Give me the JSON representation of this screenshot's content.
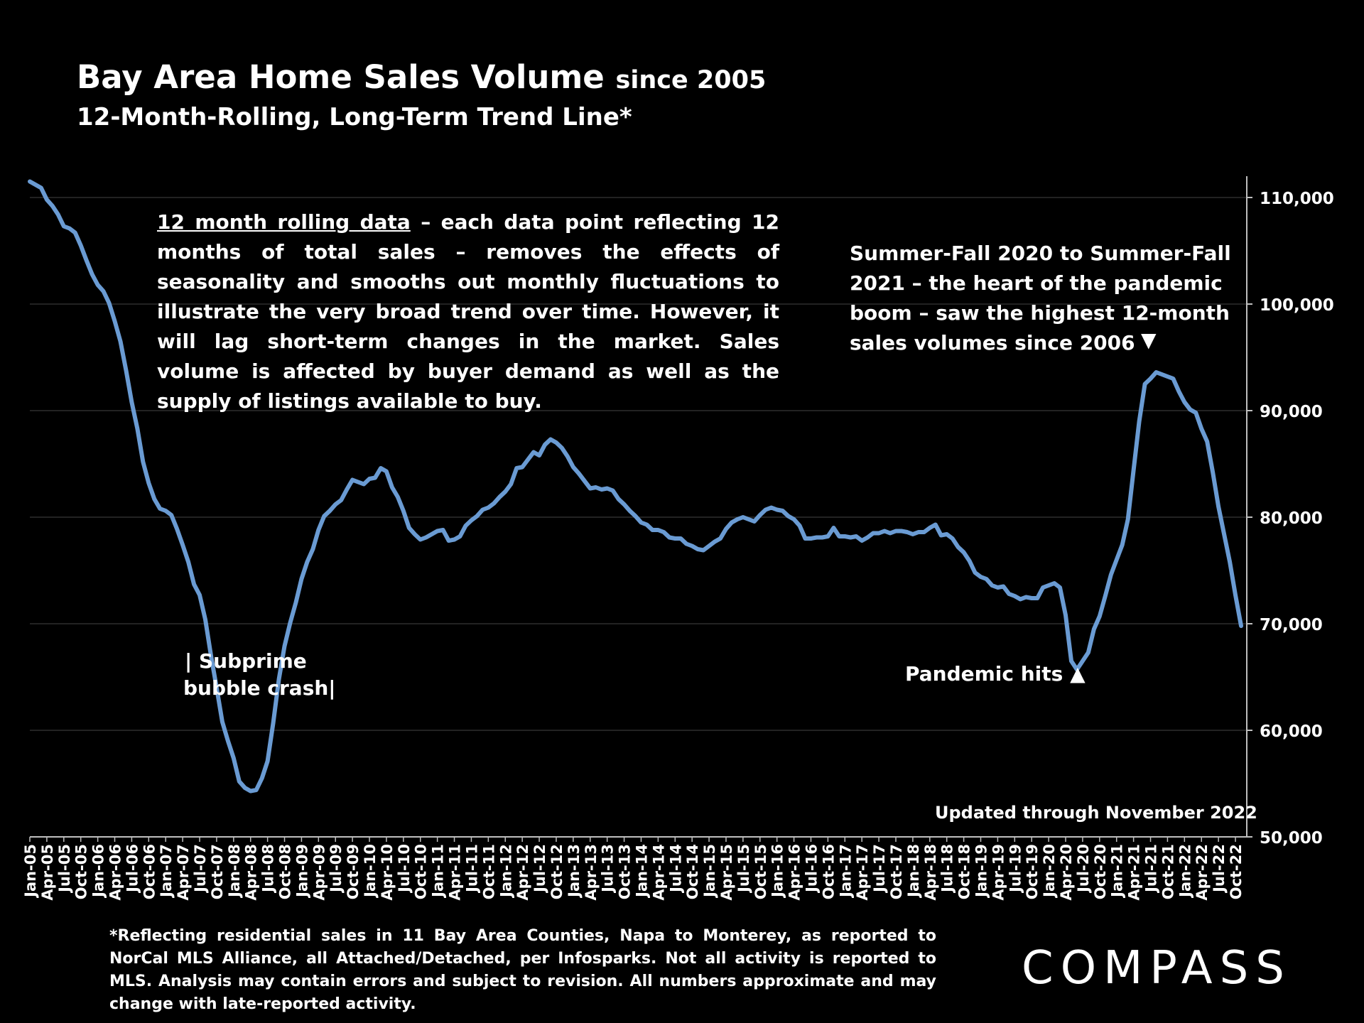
{
  "header": {
    "title_main": "Bay Area Home Sales Volume",
    "title_suffix": "since 2005",
    "subtitle": "12-Month-Rolling, Long-Term Trend Line*"
  },
  "notes": {
    "left_underlined": "12 month rolling data",
    "left_text": " – each data point reflecting 12 months of total sales – removes the effects of seasonality and smooths out monthly fluctuations to illustrate the very broad trend over time. However, it will lag short-term changes in the market. Sales volume is affected by buyer demand as well as the supply of listings available to buy.",
    "right_text": "Summer-Fall 2020 to Summer-Fall 2021 – the heart of the pandemic boom – saw the highest 12-month sales volumes since 2006",
    "right_marker": "▼"
  },
  "annotations": {
    "subprime_line1": "| Subprime",
    "subprime_line2": "bubble crash|",
    "pandemic": "Pandemic hits ▲",
    "updated": "Updated through November 2022"
  },
  "footnote": "*Reflecting residential sales in 11 Bay Area Counties, Napa to Monterey, as reported to NorCal MLS Alliance, all Attached/Detached, per Infosparks. Not all activity is reported to MLS. Analysis may contain errors and subject to revision. All numbers approximate and may change with late-reported activity.",
  "logo": "COMPASS",
  "colors": {
    "background": "#000000",
    "line": "#6a9bd3",
    "text": "#ffffff",
    "grid": "#2e2e2e"
  },
  "chart_data": {
    "type": "line",
    "title": "Bay Area Home Sales Volume since 2005",
    "subtitle": "12-Month-Rolling, Long-Term Trend Line*",
    "xlabel": "",
    "ylabel": "",
    "ylim": [
      50000,
      110000
    ],
    "yticks": [
      50000,
      60000,
      70000,
      80000,
      90000,
      100000,
      110000
    ],
    "ytick_labels": [
      "50,000",
      "60,000",
      "70,000",
      "80,000",
      "90,000",
      "100,000",
      "110,000"
    ],
    "y_axis_position": "right",
    "grid": true,
    "x_tick_labels": [
      "Jan-05",
      "Apr-05",
      "Jul-05",
      "Oct-05",
      "Jan-06",
      "Apr-06",
      "Jul-06",
      "Oct-06",
      "Jan-07",
      "Apr-07",
      "Jul-07",
      "Oct-07",
      "Jan-08",
      "Apr-08",
      "Jul-08",
      "Oct-08",
      "Jan-09",
      "Apr-09",
      "Jul-09",
      "Oct-09",
      "Jan-10",
      "Apr-10",
      "Jul-10",
      "Oct-10",
      "Jan-11",
      "Apr-11",
      "Jul-11",
      "Oct-11",
      "Jan-12",
      "Apr-12",
      "Jul-12",
      "Oct-12",
      "Jan-13",
      "Apr-13",
      "Jul-13",
      "Oct-13",
      "Jan-14",
      "Apr-14",
      "Jul-14",
      "Oct-14",
      "Jan-15",
      "Apr-15",
      "Jul-15",
      "Oct-15",
      "Jan-16",
      "Apr-16",
      "Jul-16",
      "Oct-16",
      "Jan-17",
      "Apr-17",
      "Jul-17",
      "Oct-17",
      "Jan-18",
      "Apr-18",
      "Jul-18",
      "Oct-18",
      "Jan-19",
      "Apr-19",
      "Jul-19",
      "Oct-19",
      "Jan-20",
      "Apr-20",
      "Jul-20",
      "Oct-20",
      "Jan-21",
      "Apr-21",
      "Jul-21",
      "Oct-21",
      "Jan-22",
      "Apr-22",
      "Jul-22",
      "Oct-22"
    ],
    "series": [
      {
        "x_start": "Jan-05",
        "frequency": "monthly",
        "values": [
          111500,
          111200,
          110900,
          109800,
          109200,
          108400,
          107300,
          107100,
          106700,
          105500,
          104100,
          102800,
          101800,
          101200,
          100100,
          98400,
          96500,
          93800,
          90800,
          88300,
          85200,
          83200,
          81700,
          80800,
          80600,
          80200,
          78900,
          77400,
          75800,
          73700,
          72700,
          70400,
          67000,
          64000,
          60800,
          59000,
          57400,
          55200,
          54600,
          54300,
          54400,
          55500,
          57100,
          60700,
          64800,
          67900,
          70100,
          72000,
          74200,
          75800,
          77000,
          78800,
          80100,
          80600,
          81200,
          81600,
          82600,
          83500,
          83300,
          83100,
          83600,
          83700,
          84600,
          84300,
          82800,
          81900,
          80600,
          79000,
          78400,
          77900,
          78100,
          78400,
          78700,
          78800,
          77800,
          77900,
          78200,
          79200,
          79700,
          80100,
          80700,
          80900,
          81300,
          81900,
          82400,
          83100,
          84600,
          84700,
          85400,
          86100,
          85800,
          86800,
          87300,
          87000,
          86500,
          85700,
          84700,
          84100,
          83400,
          82700,
          82800,
          82600,
          82700,
          82500,
          81700,
          81200,
          80600,
          80100,
          79500,
          79300,
          78800,
          78800,
          78600,
          78100,
          78000,
          78000,
          77500,
          77300,
          77000,
          76900,
          77300,
          77700,
          78000,
          78900,
          79500,
          79800,
          80000,
          79800,
          79600,
          80200,
          80700,
          80900,
          80700,
          80600,
          80100,
          79800,
          79200,
          78000,
          78000,
          78100,
          78100,
          78200,
          79000,
          78200,
          78200,
          78100,
          78200,
          77800,
          78100,
          78500,
          78500,
          78700,
          78500,
          78700,
          78700,
          78600,
          78400,
          78600,
          78600,
          79000,
          79300,
          78300,
          78400,
          78000,
          77200,
          76700,
          75900,
          74800,
          74400,
          74200,
          73600,
          73400,
          73500,
          72800,
          72600,
          72300,
          72500,
          72400,
          72400,
          73400,
          73600,
          73800,
          73400,
          70800,
          66500,
          65700,
          66500,
          67300,
          69500,
          70700,
          72600,
          74600,
          76000,
          77400,
          79800,
          84400,
          89000,
          92500,
          93000,
          93600,
          93400,
          93200,
          93000,
          91800,
          90800,
          90100,
          89800,
          88300,
          87100,
          84200,
          81000,
          78400,
          75800,
          72700,
          69800
        ]
      }
    ]
  }
}
